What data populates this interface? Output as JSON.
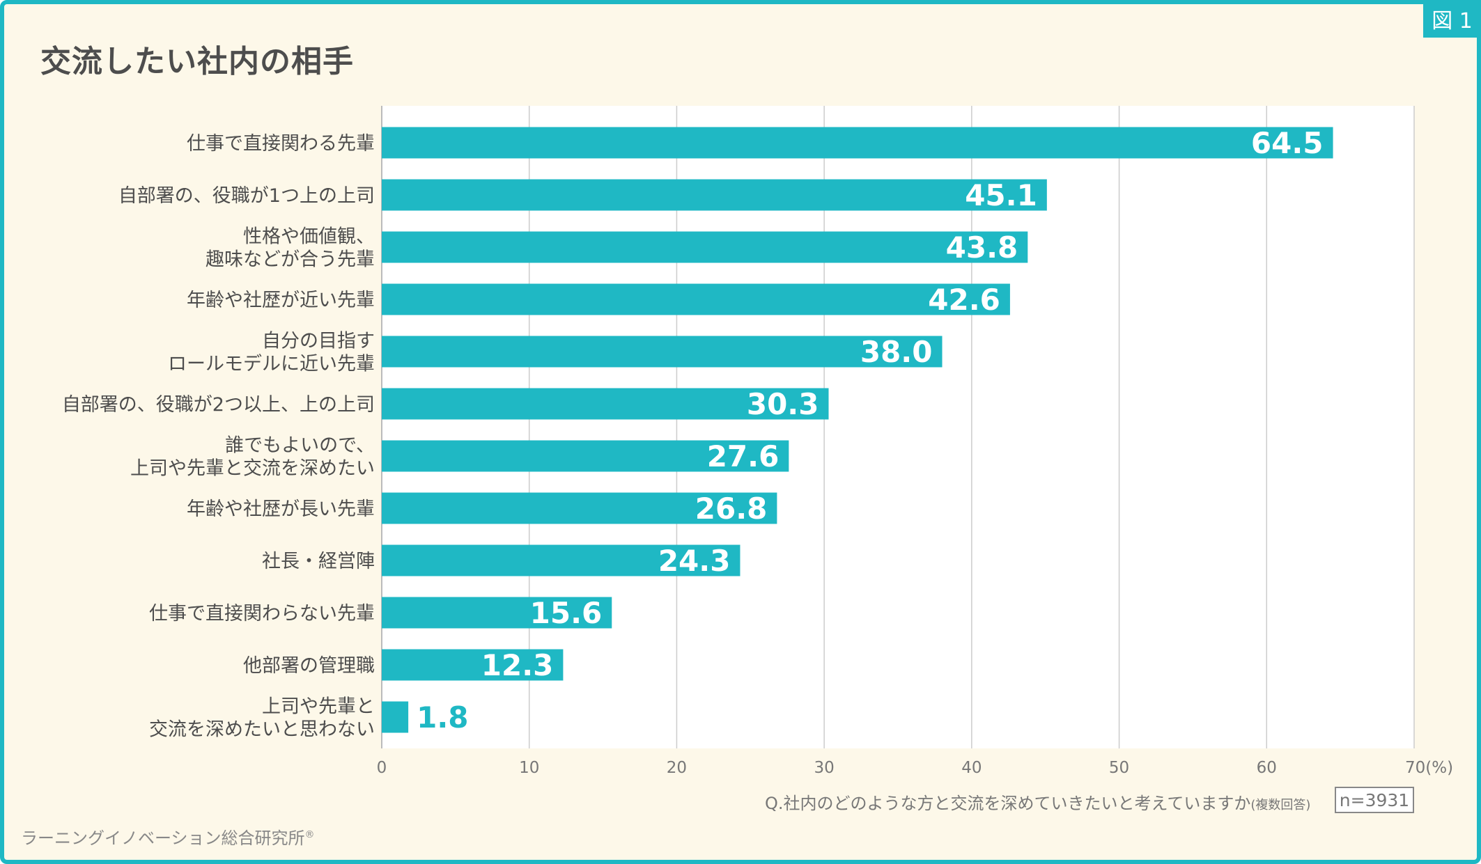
{
  "badge": "図 1",
  "chart_data": {
    "type": "bar",
    "orientation": "horizontal",
    "title": "交流したい社内の相手",
    "categories": [
      [
        "仕事で直接関わる先輩"
      ],
      [
        "自部署の、役職が1つ上の上司"
      ],
      [
        "性格や価値観、",
        "趣味などが合う先輩"
      ],
      [
        "年齢や社歴が近い先輩"
      ],
      [
        "自分の目指す",
        "ロールモデルに近い先輩"
      ],
      [
        "自部署の、役職が2つ以上、上の上司"
      ],
      [
        "誰でもよいので、",
        "上司や先輩と交流を深めたい"
      ],
      [
        "年齢や社歴が長い先輩"
      ],
      [
        "社長・経営陣"
      ],
      [
        "仕事で直接関わらない先輩"
      ],
      [
        "他部署の管理職"
      ],
      [
        "上司や先輩と",
        "交流を深めたいと思わない"
      ]
    ],
    "values": [
      64.5,
      45.1,
      43.8,
      42.6,
      38.0,
      30.3,
      27.6,
      26.8,
      24.3,
      15.6,
      12.3,
      1.8
    ],
    "value_labels": [
      "64.5",
      "45.1",
      "43.8",
      "42.6",
      "38.0",
      "30.3",
      "27.6",
      "26.8",
      "24.3",
      "15.6",
      "12.3",
      "1.8"
    ],
    "xlim": [
      0,
      70
    ],
    "xticks": [
      "0",
      "10",
      "20",
      "30",
      "40",
      "50",
      "60",
      "70(%)"
    ],
    "grid": true,
    "bar_color": "#1fb8c4"
  },
  "question": "Q.社内のどのような方と交流を深めていきたいと考えていますか",
  "question_note": "(複数回答)",
  "sample": "n=3931",
  "footer": "ラーニングイノベーション総合研究所",
  "footer_mark": "®"
}
